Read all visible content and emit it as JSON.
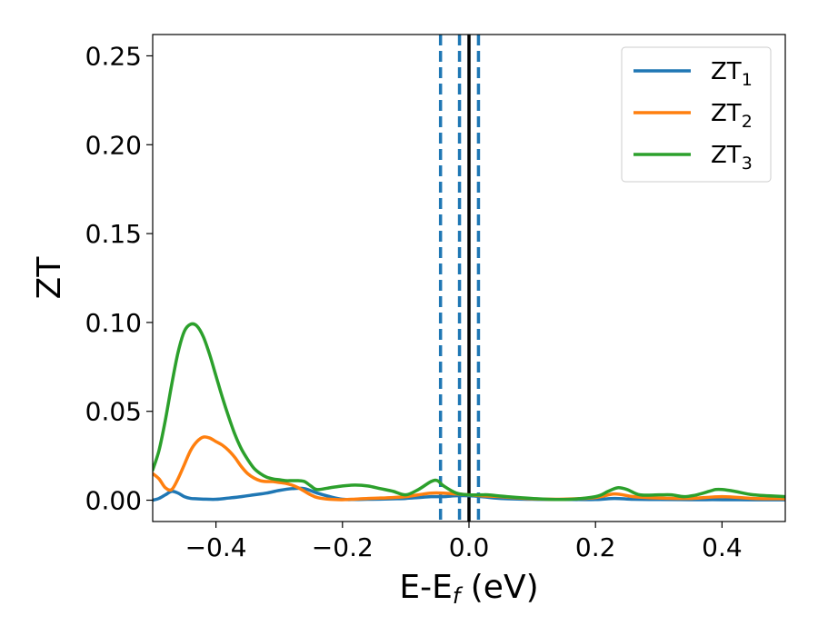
{
  "chart_data": {
    "type": "line",
    "xlabel": "E-E",
    "xlabel_subscript": "f",
    "xlabel_unit": " (eV)",
    "ylabel": "ZT",
    "xlim": [
      -0.5,
      0.5
    ],
    "ylim": [
      -0.012,
      0.262
    ],
    "x_ticks": [
      -0.4,
      -0.2,
      0.0,
      0.2,
      0.4
    ],
    "x_tick_labels": [
      "−0.4",
      "−0.2",
      "0.0",
      "0.2",
      "0.4"
    ],
    "y_ticks": [
      0.0,
      0.05,
      0.1,
      0.15,
      0.2,
      0.25
    ],
    "y_tick_labels": [
      "0.00",
      "0.05",
      "0.10",
      "0.15",
      "0.20",
      "0.25"
    ],
    "grid": false,
    "legend_position": "top-right",
    "vertical_lines": [
      {
        "x": -0.045,
        "style": "dashed",
        "color": "#1f77b4"
      },
      {
        "x": -0.015,
        "style": "dashed",
        "color": "#1f77b4"
      },
      {
        "x": 0.0,
        "style": "solid",
        "color": "#000000"
      },
      {
        "x": 0.015,
        "style": "dashed",
        "color": "#1f77b4"
      }
    ],
    "series": [
      {
        "name": "ZT",
        "subscript": "1",
        "color": "#1f77b4",
        "x": [
          -0.5,
          -0.49,
          -0.48,
          -0.47,
          -0.46,
          -0.45,
          -0.44,
          -0.43,
          -0.42,
          -0.4,
          -0.38,
          -0.36,
          -0.34,
          -0.32,
          -0.3,
          -0.28,
          -0.26,
          -0.24,
          -0.22,
          -0.2,
          -0.18,
          -0.16,
          -0.14,
          -0.12,
          -0.1,
          -0.08,
          -0.06,
          -0.04,
          -0.02,
          0.0,
          0.02,
          0.05,
          0.1,
          0.15,
          0.2,
          0.23,
          0.26,
          0.3,
          0.35,
          0.4,
          0.45,
          0.5
        ],
        "y": [
          0.0,
          0.001,
          0.003,
          0.005,
          0.004,
          0.002,
          0.001,
          0.0008,
          0.0006,
          0.0005,
          0.0012,
          0.002,
          0.003,
          0.004,
          0.0055,
          0.0065,
          0.0065,
          0.004,
          0.002,
          0.0005,
          0.0004,
          0.0005,
          0.0006,
          0.0008,
          0.001,
          0.0015,
          0.002,
          0.002,
          0.0025,
          0.0025,
          0.002,
          0.001,
          0.0005,
          0.0004,
          0.0004,
          0.001,
          0.0005,
          0.0004,
          0.0003,
          0.0003,
          0.0002,
          0.0002
        ]
      },
      {
        "name": "ZT",
        "subscript": "2",
        "color": "#ff7f0e",
        "x": [
          -0.5,
          -0.49,
          -0.48,
          -0.47,
          -0.46,
          -0.45,
          -0.44,
          -0.43,
          -0.42,
          -0.41,
          -0.4,
          -0.39,
          -0.38,
          -0.37,
          -0.36,
          -0.35,
          -0.34,
          -0.33,
          -0.32,
          -0.31,
          -0.3,
          -0.29,
          -0.28,
          -0.27,
          -0.26,
          -0.25,
          -0.24,
          -0.22,
          -0.2,
          -0.18,
          -0.16,
          -0.14,
          -0.12,
          -0.1,
          -0.08,
          -0.06,
          -0.04,
          -0.02,
          0.0,
          0.02,
          0.05,
          0.1,
          0.15,
          0.2,
          0.23,
          0.26,
          0.3,
          0.35,
          0.4,
          0.45,
          0.5
        ],
        "y": [
          0.015,
          0.012,
          0.007,
          0.006,
          0.012,
          0.02,
          0.028,
          0.033,
          0.0355,
          0.035,
          0.033,
          0.031,
          0.028,
          0.024,
          0.019,
          0.015,
          0.0125,
          0.011,
          0.0105,
          0.0105,
          0.01,
          0.0095,
          0.0085,
          0.007,
          0.005,
          0.003,
          0.0015,
          0.0005,
          0.0003,
          0.0006,
          0.001,
          0.0012,
          0.0015,
          0.002,
          0.003,
          0.004,
          0.004,
          0.0035,
          0.003,
          0.0025,
          0.002,
          0.0008,
          0.0006,
          0.0015,
          0.0035,
          0.002,
          0.0012,
          0.001,
          0.002,
          0.001,
          0.0008
        ]
      },
      {
        "name": "ZT",
        "subscript": "3",
        "color": "#2ca02c",
        "x": [
          -0.5,
          -0.49,
          -0.48,
          -0.47,
          -0.46,
          -0.45,
          -0.44,
          -0.43,
          -0.42,
          -0.41,
          -0.4,
          -0.39,
          -0.38,
          -0.37,
          -0.36,
          -0.35,
          -0.34,
          -0.33,
          -0.32,
          -0.31,
          -0.3,
          -0.29,
          -0.28,
          -0.27,
          -0.26,
          -0.25,
          -0.24,
          -0.22,
          -0.2,
          -0.18,
          -0.16,
          -0.14,
          -0.12,
          -0.1,
          -0.08,
          -0.06,
          -0.05,
          -0.04,
          -0.02,
          0.0,
          0.02,
          0.03,
          0.06,
          0.1,
          0.15,
          0.2,
          0.22,
          0.235,
          0.25,
          0.27,
          0.3,
          0.32,
          0.34,
          0.36,
          0.38,
          0.39,
          0.4,
          0.42,
          0.45,
          0.5
        ],
        "y": [
          0.017,
          0.028,
          0.045,
          0.065,
          0.083,
          0.095,
          0.099,
          0.098,
          0.092,
          0.082,
          0.07,
          0.058,
          0.047,
          0.037,
          0.029,
          0.023,
          0.018,
          0.015,
          0.013,
          0.012,
          0.0115,
          0.011,
          0.011,
          0.011,
          0.0105,
          0.008,
          0.006,
          0.007,
          0.008,
          0.0085,
          0.008,
          0.0065,
          0.005,
          0.003,
          0.006,
          0.0105,
          0.011,
          0.008,
          0.004,
          0.003,
          0.003,
          0.003,
          0.002,
          0.001,
          0.0004,
          0.002,
          0.005,
          0.007,
          0.006,
          0.003,
          0.003,
          0.003,
          0.002,
          0.003,
          0.005,
          0.006,
          0.006,
          0.005,
          0.003,
          0.002
        ]
      }
    ]
  }
}
